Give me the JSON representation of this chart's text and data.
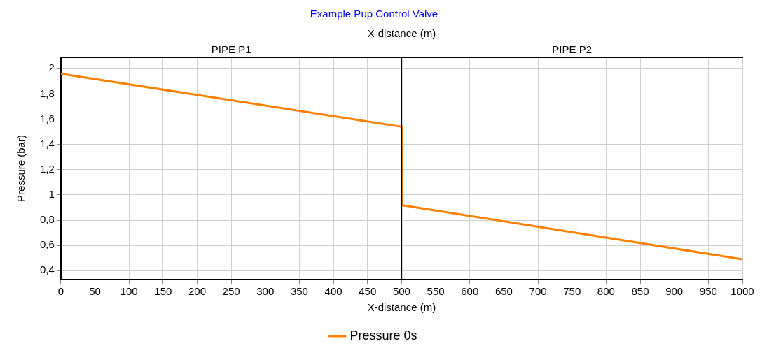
{
  "chart_data": {
    "type": "line",
    "title": "Example Pup Control Valve",
    "xlabel": "X-distance (m)",
    "x2label": "X-distance (m)",
    "ylabel": "Pressure (bar)",
    "series": [
      {
        "name": "Pressure 0s",
        "color": "#ff8000",
        "x": [
          0,
          500,
          500,
          1000
        ],
        "values": [
          1.96,
          1.54,
          0.92,
          0.49
        ]
      }
    ],
    "xlim": [
      0,
      1000
    ],
    "xticks": [
      0,
      50,
      100,
      150,
      200,
      250,
      300,
      350,
      400,
      450,
      500,
      550,
      600,
      650,
      700,
      750,
      800,
      850,
      900,
      950,
      1000
    ],
    "annotations": [
      "PIPE P1",
      "PIPE P2"
    ],
    "ylim": [
      0.33,
      2.09
    ],
    "yticks": [
      {
        "value": 0.4,
        "label": "0,4"
      },
      {
        "value": 0.6,
        "label": "0,6"
      },
      {
        "value": 0.8,
        "label": "0,8"
      },
      {
        "value": 1,
        "label": "1"
      },
      {
        "value": 1.2,
        "label": "1,2"
      },
      {
        "value": 1.4,
        "label": "1,4"
      },
      {
        "value": 1.6,
        "label": "1,6"
      },
      {
        "value": 1.8,
        "label": "1,8"
      },
      {
        "value": 2,
        "label": "2"
      }
    ],
    "ref_lines": [
      {
        "axis": "x",
        "value": 500,
        "color": "#000000"
      }
    ],
    "grid": true,
    "legend": "bottom",
    "marker": "none",
    "line_style": "solid"
  }
}
